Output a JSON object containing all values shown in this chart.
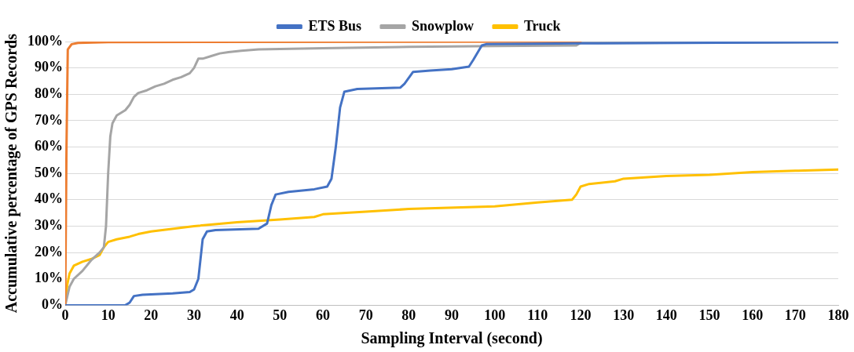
{
  "chart_data": {
    "type": "line",
    "xlabel": "Sampling Interval (second)",
    "ylabel": "Accumulative percentage of GPS Records",
    "xlim": [
      0,
      180
    ],
    "xticks": [
      0,
      10,
      20,
      30,
      40,
      50,
      60,
      70,
      80,
      90,
      100,
      110,
      120,
      130,
      140,
      150,
      160,
      170,
      180
    ],
    "ylim": [
      0,
      100
    ],
    "yticks": [
      {
        "value": 0,
        "label": "0%"
      },
      {
        "value": 10,
        "label": "10%"
      },
      {
        "value": 20,
        "label": "20%"
      },
      {
        "value": 30,
        "label": "30%"
      },
      {
        "value": 40,
        "label": "40%"
      },
      {
        "value": 50,
        "label": "50%"
      },
      {
        "value": 60,
        "label": "60%"
      },
      {
        "value": 70,
        "label": "70%"
      },
      {
        "value": 80,
        "label": "80%"
      },
      {
        "value": 90,
        "label": "90%"
      },
      {
        "value": 100,
        "label": "100%"
      }
    ],
    "grid": "y",
    "legend": "top",
    "marker": "none",
    "line_style": "solid",
    "series": [
      {
        "name": "ETS Bus",
        "color": "#4472c4",
        "x": [
          0,
          14,
          15,
          16,
          18,
          25,
          29,
          30,
          31,
          32,
          33,
          35,
          45,
          47,
          48,
          49,
          52,
          58,
          61,
          62,
          63,
          64,
          65,
          68,
          78,
          79,
          81,
          85,
          90,
          94,
          95,
          97,
          98,
          120,
          180
        ],
        "values": [
          0,
          0,
          1,
          3.5,
          4,
          4.5,
          5,
          6,
          10,
          25,
          28,
          28.5,
          29,
          31,
          38,
          42,
          43,
          44,
          45,
          48,
          60,
          75,
          81,
          82,
          82.5,
          84,
          88.5,
          89,
          89.5,
          90.5,
          93,
          98.5,
          99,
          99.3,
          99.8
        ]
      },
      {
        "color": "#ed7d31",
        "x": [
          0,
          0.3,
          0.6,
          1.5,
          3,
          10,
          120
        ],
        "values": [
          0,
          60,
          97,
          99,
          99.5,
          99.8,
          100
        ]
      },
      {
        "name": "Snowplow",
        "color": "#a5a5a5",
        "x": [
          0,
          1,
          2,
          4,
          6,
          8,
          9,
          9.5,
          10,
          10.5,
          11,
          12,
          14,
          15,
          16,
          17,
          19,
          21,
          23,
          25,
          27,
          29,
          30,
          31,
          32,
          34,
          36,
          38,
          41,
          45,
          60,
          80,
          100,
          119,
          120,
          180
        ],
        "values": [
          0,
          7,
          10,
          13,
          17,
          20,
          22,
          30,
          50,
          64,
          69,
          72,
          74,
          76,
          79,
          80.5,
          81.5,
          83,
          84,
          85.5,
          86.5,
          88,
          90,
          93.5,
          93.5,
          94.5,
          95.5,
          96,
          96.5,
          97,
          97.5,
          98,
          98.3,
          98.5,
          99.5,
          99.7
        ]
      },
      {
        "name": "Truck",
        "color": "#ffc000",
        "x": [
          0,
          0.5,
          1,
          2,
          4,
          6,
          8,
          9,
          10,
          12,
          15,
          17,
          20,
          30,
          40,
          50,
          58,
          60,
          70,
          80,
          100,
          110,
          118,
          119,
          120,
          122,
          128,
          130,
          140,
          150,
          160,
          170,
          180
        ],
        "values": [
          0,
          8,
          12,
          15,
          16.5,
          17.5,
          19,
          22,
          24,
          25,
          26,
          27,
          28,
          30,
          31.5,
          32.5,
          33.5,
          34.5,
          35.5,
          36.5,
          37.5,
          39,
          40,
          42,
          45,
          46,
          47,
          48,
          49,
          49.5,
          50.5,
          51,
          51.5
        ]
      }
    ]
  }
}
